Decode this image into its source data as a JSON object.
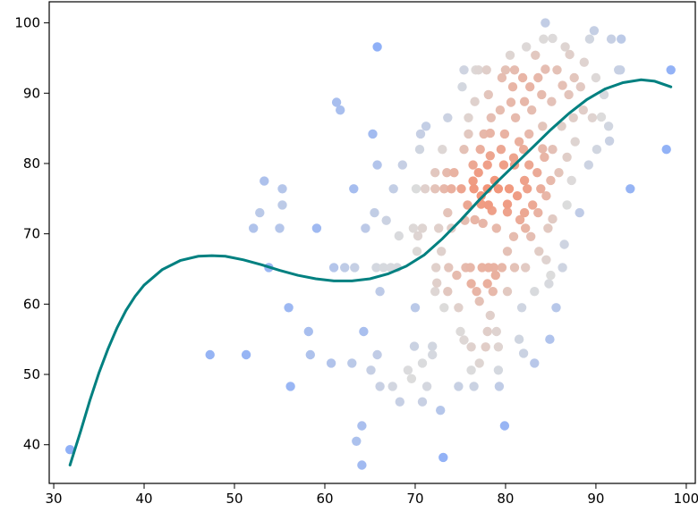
{
  "chart_data": {
    "type": "scatter",
    "title": "",
    "xlabel": "",
    "ylabel": "",
    "xlim": [
      29.5,
      101
    ],
    "ylim": [
      34.5,
      103
    ],
    "grid": false,
    "legend": null,
    "x_ticks": [
      30,
      40,
      50,
      60,
      70,
      80,
      90,
      100
    ],
    "y_ticks": [
      40,
      50,
      60,
      70,
      80,
      90,
      100
    ],
    "x_tick_labels": [
      "30",
      "40",
      "50",
      "60",
      "70",
      "80",
      "90",
      "100"
    ],
    "y_tick_labels": [
      "40",
      "50",
      "60",
      "70",
      "80",
      "90",
      "100"
    ],
    "colormap": {
      "low": "#8fb0f7",
      "mid": "#dcdcdc",
      "high": "#f29478"
    },
    "curve_color": "#008080",
    "points": [
      [
        31.8,
        39.3
      ],
      [
        47.3,
        52.8
      ],
      [
        51.3,
        52.8
      ],
      [
        52.1,
        70.8
      ],
      [
        52.8,
        73
      ],
      [
        53.3,
        77.5
      ],
      [
        53.8,
        65.2
      ],
      [
        55,
        70.8
      ],
      [
        55.3,
        76.4
      ],
      [
        55.3,
        74.1
      ],
      [
        56,
        59.5
      ],
      [
        56.2,
        48.3
      ],
      [
        58.2,
        56.1
      ],
      [
        58.4,
        52.8
      ],
      [
        59.1,
        70.8
      ],
      [
        60.7,
        51.6
      ],
      [
        61,
        65.2
      ],
      [
        61.3,
        88.7
      ],
      [
        61.7,
        87.6
      ],
      [
        62.2,
        65.2
      ],
      [
        63,
        51.6
      ],
      [
        63.2,
        76.4
      ],
      [
        63.3,
        65.2
      ],
      [
        63.5,
        40.5
      ],
      [
        64.1,
        37.1
      ],
      [
        64.1,
        42.7
      ],
      [
        64.3,
        56.1
      ],
      [
        64.5,
        70.8
      ],
      [
        65.1,
        50.6
      ],
      [
        65.3,
        84.2
      ],
      [
        65.5,
        73
      ],
      [
        65.8,
        52.8
      ],
      [
        65.7,
        65.2
      ],
      [
        65.8,
        79.8
      ],
      [
        65.8,
        96.6
      ],
      [
        66.1,
        61.8
      ],
      [
        66.1,
        48.3
      ],
      [
        66.5,
        65.2
      ],
      [
        66.8,
        71.9
      ],
      [
        67.3,
        65.2
      ],
      [
        67.5,
        48.3
      ],
      [
        67.6,
        76.4
      ],
      [
        68,
        65.2
      ],
      [
        68.2,
        69.7
      ],
      [
        68.6,
        79.8
      ],
      [
        68.3,
        46.1
      ],
      [
        69.2,
        50.6
      ],
      [
        69.6,
        49.4
      ],
      [
        69.8,
        70.8
      ],
      [
        69.9,
        54
      ],
      [
        70,
        59.5
      ],
      [
        70.3,
        69.7
      ],
      [
        70.1,
        76.4
      ],
      [
        70.2,
        67.5
      ],
      [
        70.5,
        82
      ],
      [
        70.6,
        84.2
      ],
      [
        70.8,
        70.8
      ],
      [
        70.8,
        51.6
      ],
      [
        70.8,
        46.1
      ],
      [
        71.1,
        76.4
      ],
      [
        71.3,
        48.3
      ],
      [
        71.2,
        85.3
      ],
      [
        71.9,
        54
      ],
      [
        71.9,
        52.8
      ],
      [
        72.2,
        61.8
      ],
      [
        72.2,
        76.4
      ],
      [
        72.2,
        78.7
      ],
      [
        72.3,
        65.2
      ],
      [
        72.4,
        63
      ],
      [
        72.6,
        70.8
      ],
      [
        72.8,
        44.9
      ],
      [
        72.9,
        67.5
      ],
      [
        73,
        82
      ],
      [
        73.1,
        38.2
      ],
      [
        73.2,
        59.5
      ],
      [
        73.2,
        76.4
      ],
      [
        73.5,
        78.7
      ],
      [
        73.6,
        61.8
      ],
      [
        73.6,
        86.5
      ],
      [
        73.6,
        73
      ],
      [
        73.7,
        65.2
      ],
      [
        74,
        70.8
      ],
      [
        74,
        76.4
      ],
      [
        74.3,
        78.7
      ],
      [
        74.6,
        64.1
      ],
      [
        74.8,
        59.5
      ],
      [
        74.8,
        48.3
      ],
      [
        75,
        56.1
      ],
      [
        75.2,
        90.9
      ],
      [
        75.1,
        76.4
      ],
      [
        75.4,
        82
      ],
      [
        75.4,
        54.9
      ],
      [
        75.4,
        93.3
      ],
      [
        75.5,
        71.9
      ],
      [
        75.6,
        65.2
      ],
      [
        75.8,
        74.1
      ],
      [
        75.9,
        84.2
      ],
      [
        75.9,
        86.5
      ],
      [
        76.1,
        65.2
      ],
      [
        76.2,
        53.9
      ],
      [
        76.2,
        62.9
      ],
      [
        76.2,
        50.6
      ],
      [
        76.4,
        77.5
      ],
      [
        76.4,
        79.8
      ],
      [
        76.5,
        48.3
      ],
      [
        76.5,
        76.4
      ],
      [
        76.6,
        88.8
      ],
      [
        76.6,
        72
      ],
      [
        76.7,
        93.3
      ],
      [
        76.8,
        61.8
      ],
      [
        77,
        93.3
      ],
      [
        77.1,
        60.4
      ],
      [
        77,
        78.7
      ],
      [
        77.1,
        51.6
      ],
      [
        77.2,
        82
      ],
      [
        77.3,
        74.2
      ],
      [
        77.3,
        75.4
      ],
      [
        77.4,
        65.2
      ],
      [
        77.5,
        71.5
      ],
      [
        77.6,
        84.2
      ],
      [
        77.8,
        53.9
      ],
      [
        77.9,
        93.3
      ],
      [
        78,
        56.1
      ],
      [
        78,
        62.9
      ],
      [
        78,
        79.8
      ],
      [
        78,
        76.4
      ],
      [
        78.1,
        74.1
      ],
      [
        78.1,
        65.2
      ],
      [
        78.1,
        89.8
      ],
      [
        78.3,
        58.4
      ],
      [
        78.3,
        84.3
      ],
      [
        78.4,
        86.5
      ],
      [
        78.3,
        81.1
      ],
      [
        78.5,
        73.3
      ],
      [
        78.6,
        61.8
      ],
      [
        78.7,
        65.2
      ],
      [
        78.8,
        77.6
      ],
      [
        78.9,
        64.1
      ],
      [
        79,
        56.1
      ],
      [
        79,
        70.8
      ],
      [
        79.2,
        53.9
      ],
      [
        79.2,
        50.6
      ],
      [
        79.2,
        76.4
      ],
      [
        79.4,
        87.6
      ],
      [
        79.3,
        48.3
      ],
      [
        79.5,
        82
      ],
      [
        79.6,
        65.2
      ],
      [
        79.6,
        92.2
      ],
      [
        79.8,
        79.8
      ],
      [
        79.9,
        42.7
      ],
      [
        79.9,
        84.2
      ],
      [
        80,
        93.3
      ],
      [
        80.2,
        74.2
      ],
      [
        80.2,
        73.1
      ],
      [
        80.2,
        67.5
      ],
      [
        80.2,
        61.8
      ],
      [
        80.4,
        76.4
      ],
      [
        80.5,
        95.4
      ],
      [
        80.6,
        88.7
      ],
      [
        80.8,
        90.9
      ],
      [
        80.9,
        80.8
      ],
      [
        80.9,
        69.6
      ],
      [
        81,
        79.8
      ],
      [
        81,
        65.2
      ],
      [
        81,
        93.3
      ],
      [
        81.1,
        86.5
      ],
      [
        81.3,
        75.4
      ],
      [
        81.5,
        83.1
      ],
      [
        81.5,
        55
      ],
      [
        81.6,
        72
      ],
      [
        81.8,
        59.5
      ],
      [
        81.9,
        92.2
      ],
      [
        82,
        82
      ],
      [
        82,
        53
      ],
      [
        82.1,
        77.6
      ],
      [
        82.1,
        88.8
      ],
      [
        82.1,
        73
      ],
      [
        82.2,
        70.8
      ],
      [
        82.2,
        65.2
      ],
      [
        82.3,
        96.6
      ],
      [
        82.4,
        76.4
      ],
      [
        82.6,
        84.2
      ],
      [
        82.6,
        79.8
      ],
      [
        82.7,
        90.9
      ],
      [
        82.8,
        69.6
      ],
      [
        82.9,
        87.6
      ],
      [
        83,
        74.1
      ],
      [
        83.2,
        61.8
      ],
      [
        83.2,
        51.6
      ],
      [
        83.3,
        95.4
      ],
      [
        83.5,
        78.7
      ],
      [
        83.6,
        92.2
      ],
      [
        83.6,
        73
      ],
      [
        83.7,
        67.5
      ],
      [
        83.9,
        76.4
      ],
      [
        84,
        89.8
      ],
      [
        84.1,
        82.1
      ],
      [
        84.1,
        85.3
      ],
      [
        84.2,
        97.7
      ],
      [
        84.3,
        80.9
      ],
      [
        84.4,
        100
      ],
      [
        84.4,
        93.4
      ],
      [
        84.5,
        66.3
      ],
      [
        84.5,
        75.4
      ],
      [
        84.7,
        70.8
      ],
      [
        84.8,
        62.9
      ],
      [
        84.9,
        55
      ],
      [
        85,
        77.6
      ],
      [
        85,
        64.1
      ],
      [
        85.1,
        88.8
      ],
      [
        85.2,
        82
      ],
      [
        85.2,
        97.8
      ],
      [
        85.2,
        72.1
      ],
      [
        85.6,
        59.5
      ],
      [
        85.7,
        93.3
      ],
      [
        85.9,
        78.7
      ],
      [
        86.2,
        85.3
      ],
      [
        86.3,
        65.2
      ],
      [
        86.3,
        91.1
      ],
      [
        86.5,
        68.5
      ],
      [
        86.6,
        96.6
      ],
      [
        86.8,
        80.9
      ],
      [
        86.8,
        74.1
      ],
      [
        87,
        89.8
      ],
      [
        87.1,
        95.5
      ],
      [
        87.3,
        77.6
      ],
      [
        87.5,
        86.5
      ],
      [
        87.6,
        92.2
      ],
      [
        87.7,
        83.1
      ],
      [
        88.2,
        73
      ],
      [
        88.3,
        90.9
      ],
      [
        88.6,
        87.6
      ],
      [
        88.7,
        94.4
      ],
      [
        89.2,
        79.8
      ],
      [
        89.3,
        97.7
      ],
      [
        89.6,
        86.5
      ],
      [
        89.8,
        98.9
      ],
      [
        90,
        92.2
      ],
      [
        90.1,
        82
      ],
      [
        90.6,
        86.6
      ],
      [
        90.9,
        89.8
      ],
      [
        91.4,
        85.3
      ],
      [
        91.5,
        83.2
      ],
      [
        91.7,
        97.7
      ],
      [
        92.5,
        93.3
      ],
      [
        92.7,
        93.3
      ],
      [
        92.8,
        97.7
      ],
      [
        93.8,
        76.4
      ],
      [
        97.8,
        82
      ],
      [
        98.3,
        93.3
      ]
    ],
    "trend_curve": {
      "x": [
        31.8,
        33,
        34,
        35,
        36,
        37,
        38,
        39,
        40,
        42,
        44,
        46,
        47.5,
        49,
        51,
        53,
        55,
        57,
        59,
        61,
        63,
        65,
        67,
        69,
        71,
        73,
        75,
        77,
        79,
        81,
        83,
        85,
        87,
        89,
        91,
        93,
        95,
        96.5,
        98.3
      ],
      "y": [
        37.1,
        42,
        46.3,
        50.2,
        53.6,
        56.6,
        59.1,
        61.1,
        62.7,
        64.9,
        66.2,
        66.8,
        66.9,
        66.8,
        66.3,
        65.6,
        64.8,
        64.1,
        63.6,
        63.3,
        63.3,
        63.6,
        64.3,
        65.4,
        67,
        69.3,
        71.9,
        74.7,
        77.3,
        79.8,
        82.3,
        84.8,
        87.1,
        89.1,
        90.6,
        91.5,
        91.9,
        91.7,
        90.9
      ]
    }
  }
}
